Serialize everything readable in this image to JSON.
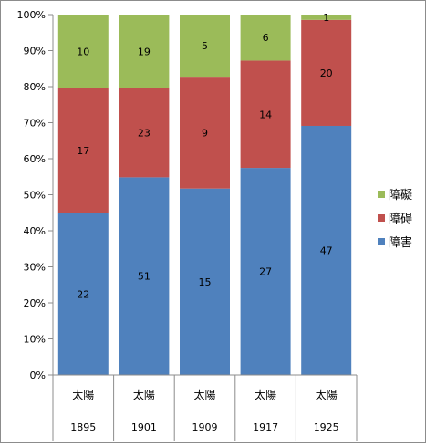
{
  "chart_data": {
    "type": "bar",
    "stacked": "percent",
    "categories": [
      {
        "line1": "太陽",
        "line2": "1895"
      },
      {
        "line1": "太陽",
        "line2": "1901"
      },
      {
        "line1": "太陽",
        "line2": "1909"
      },
      {
        "line1": "太陽",
        "line2": "1917"
      },
      {
        "line1": "太陽",
        "line2": "1925"
      }
    ],
    "series": [
      {
        "name": "障害",
        "color": "#4f81bd",
        "values": [
          22,
          51,
          15,
          27,
          47
        ]
      },
      {
        "name": "障碍",
        "color": "#c0504d",
        "values": [
          17,
          23,
          9,
          14,
          20
        ]
      },
      {
        "name": "障礙",
        "color": "#9bbb59",
        "values": [
          10,
          19,
          5,
          6,
          1
        ]
      }
    ],
    "y_ticks": [
      "0%",
      "10%",
      "20%",
      "30%",
      "40%",
      "50%",
      "60%",
      "70%",
      "80%",
      "90%",
      "100%"
    ],
    "ylim": [
      0,
      100
    ],
    "grid": false,
    "legend_position": "right",
    "legend_order": [
      "障礙",
      "障碍",
      "障害"
    ]
  }
}
